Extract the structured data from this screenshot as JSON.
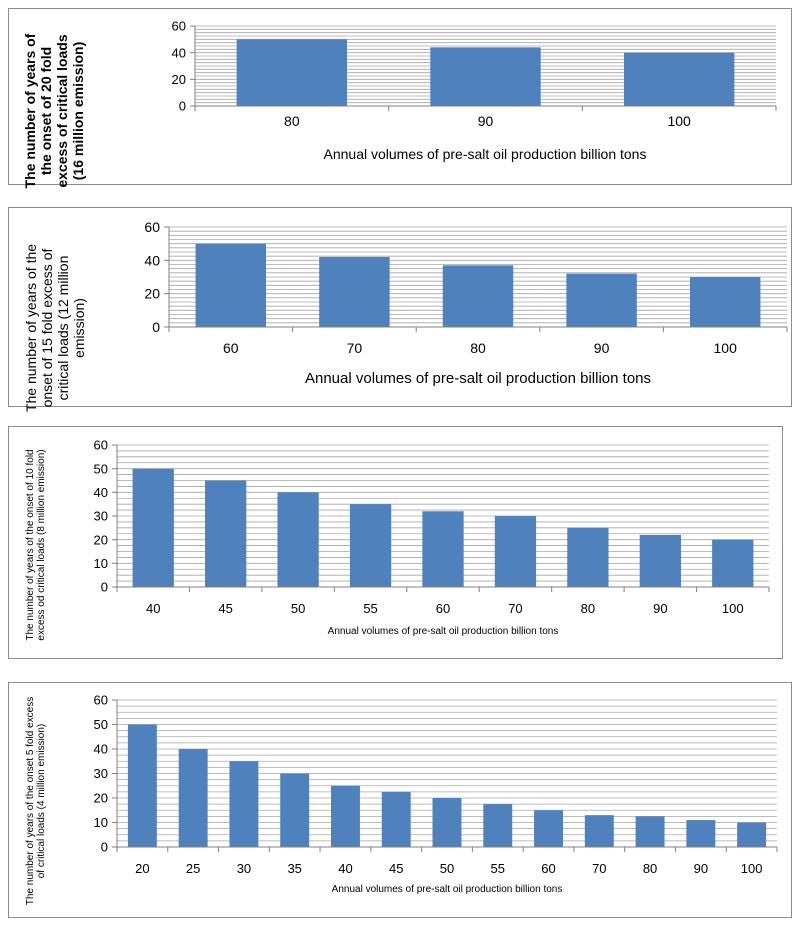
{
  "chart_data": [
    {
      "type": "bar",
      "categories": [
        "80",
        "90",
        "100"
      ],
      "values": [
        50,
        44,
        40
      ],
      "title": "",
      "xlabel": "Annual volumes of pre-salt oil production billion tons",
      "ylabel": "The number of years of the onset of 20 fold excess of critical loads (16 million emission)",
      "ylim": [
        0,
        60
      ],
      "yticks": [
        0,
        20,
        40,
        60
      ],
      "grid": true,
      "bar_color": "#4f81bd"
    },
    {
      "type": "bar",
      "categories": [
        "60",
        "70",
        "80",
        "90",
        "100"
      ],
      "values": [
        50,
        42,
        37,
        32,
        30
      ],
      "title": "",
      "xlabel": "Annual volumes of pre-salt oil production billion tons",
      "ylabel": "The number of years of the onset of 15 fold excess of critical loads (12 million emission)",
      "ylim": [
        0,
        60
      ],
      "yticks": [
        0,
        20,
        40,
        60
      ],
      "grid": true,
      "bar_color": "#4f81bd"
    },
    {
      "type": "bar",
      "categories": [
        "40",
        "45",
        "50",
        "55",
        "60",
        "70",
        "80",
        "90",
        "100"
      ],
      "values": [
        50,
        45,
        40,
        35,
        32,
        30,
        25,
        22,
        20
      ],
      "title": "",
      "xlabel": "Annual volumes of pre-salt oil production billion tons",
      "ylabel": "The number of years of the onset of 10 fold excess od critical loads (8 million emission)",
      "ylim": [
        0,
        60
      ],
      "yticks": [
        0,
        10,
        20,
        30,
        40,
        50,
        60
      ],
      "grid": true,
      "bar_color": "#4f81bd"
    },
    {
      "type": "bar",
      "categories": [
        "20",
        "25",
        "30",
        "35",
        "40",
        "45",
        "50",
        "55",
        "60",
        "70",
        "80",
        "90",
        "100"
      ],
      "values": [
        50,
        40,
        35,
        30,
        25,
        22.5,
        20,
        17.5,
        15,
        13,
        12.5,
        11,
        10
      ],
      "title": "",
      "xlabel": "Annual volumes of pre-salt oil production billion tons",
      "ylabel": "The number of years of the onset 5 fold excess of critical loads (4 million emission)",
      "ylim": [
        0,
        60
      ],
      "yticks": [
        0,
        10,
        20,
        30,
        40,
        50,
        60
      ],
      "grid": true,
      "bar_color": "#4f81bd"
    }
  ]
}
